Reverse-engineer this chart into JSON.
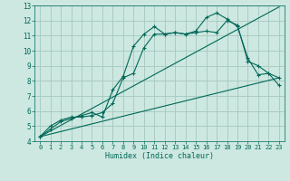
{
  "bg_color": "#cce8e0",
  "grid_color": "#aaccc4",
  "line_color": "#006858",
  "marker_color": "#006858",
  "xlabel": "Humidex (Indice chaleur)",
  "xlim": [
    -0.5,
    23.5
  ],
  "ylim": [
    4,
    13
  ],
  "xticks": [
    0,
    1,
    2,
    3,
    4,
    5,
    6,
    7,
    8,
    9,
    10,
    11,
    12,
    13,
    14,
    15,
    16,
    17,
    18,
    19,
    20,
    21,
    22,
    23
  ],
  "yticks": [
    4,
    5,
    6,
    7,
    8,
    9,
    10,
    11,
    12,
    13
  ],
  "line1_x": [
    0,
    1,
    2,
    3,
    4,
    5,
    6,
    7,
    8,
    9,
    10,
    11,
    12,
    13,
    14,
    15,
    16,
    17,
    18,
    19,
    20,
    21,
    22,
    23
  ],
  "line1_y": [
    4.3,
    4.8,
    5.3,
    5.5,
    5.7,
    5.9,
    5.6,
    7.4,
    8.3,
    10.3,
    11.1,
    11.6,
    11.1,
    11.2,
    11.1,
    11.3,
    12.2,
    12.5,
    12.1,
    11.6,
    9.5,
    8.4,
    8.5,
    7.7
  ],
  "line2_x": [
    0,
    1,
    2,
    3,
    4,
    5,
    6,
    7,
    8,
    9,
    10,
    11,
    12,
    13,
    14,
    15,
    16,
    17,
    18,
    19,
    20,
    21,
    22,
    23
  ],
  "line2_y": [
    4.3,
    5.0,
    5.4,
    5.6,
    5.6,
    5.7,
    5.9,
    6.5,
    8.2,
    8.5,
    10.2,
    11.1,
    11.1,
    11.2,
    11.1,
    11.2,
    11.3,
    11.2,
    12.0,
    11.7,
    9.3,
    9.0,
    8.5,
    8.2
  ],
  "line3_x": [
    0,
    23
  ],
  "line3_y": [
    4.3,
    8.2
  ],
  "line4_x": [
    0,
    23
  ],
  "line4_y": [
    4.3,
    12.9
  ]
}
